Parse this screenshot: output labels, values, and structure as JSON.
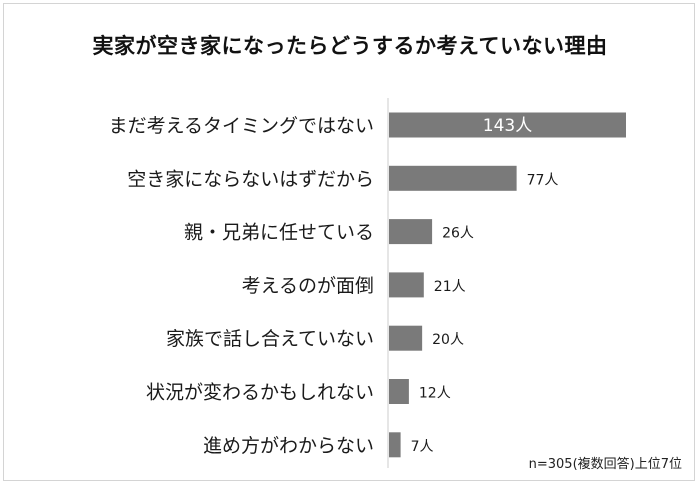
{
  "chart_data": {
    "type": "bar",
    "orientation": "horizontal",
    "title": "実家が空き家になったらどうするか考えていない理由",
    "categories": [
      "まだ考えるタイミングではない",
      "空き家にならないはずだから",
      "親・兄弟に任せている",
      "考えるのが面倒",
      "家族で話し合えていない",
      "状況が変わるかもしれない",
      "進め方がわからない"
    ],
    "values": [
      143,
      77,
      26,
      21,
      20,
      12,
      7
    ],
    "data_labels": [
      "143人",
      "77人",
      "26人",
      "21人",
      "20人",
      "12人",
      "7人"
    ],
    "unit": "人",
    "xlim": [
      0,
      143
    ],
    "bar_color": "#7a7a7a",
    "axis_color": "#cccccc",
    "grid": false,
    "legend": "none"
  },
  "note": "n=305(複数回答)上位7位"
}
